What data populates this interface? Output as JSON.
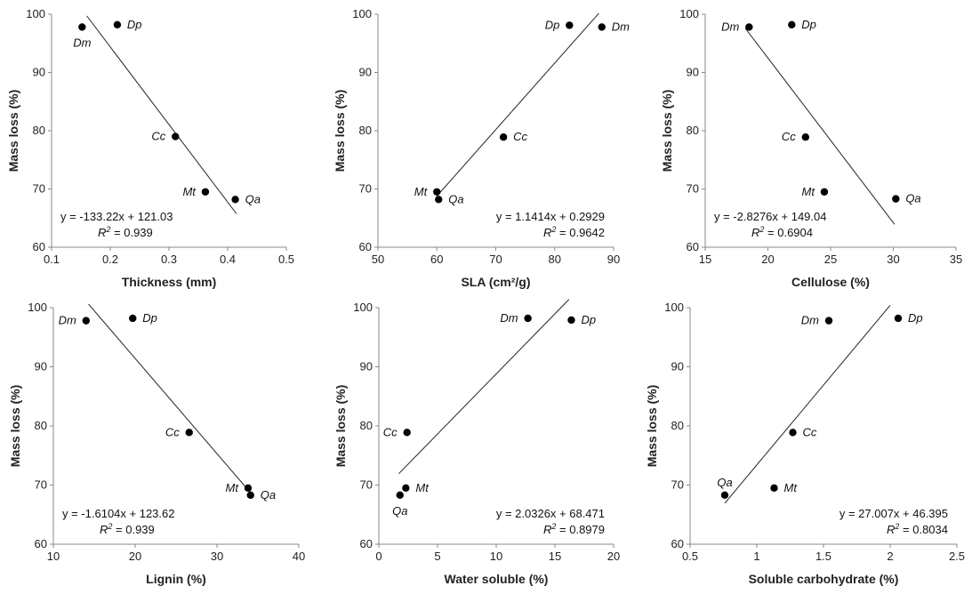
{
  "chart_data": [
    {
      "type": "scatter",
      "xlabel": "Thickness (mm)",
      "ylabel": "Mass loss (%)",
      "xlim": [
        0.1,
        0.5
      ],
      "xticks": [
        0.1,
        0.2,
        0.3,
        0.4,
        0.5
      ],
      "ylim": [
        60,
        100
      ],
      "yticks": [
        60,
        70,
        80,
        90,
        100
      ],
      "points": [
        {
          "label": "Dm",
          "x": 0.152,
          "y": 97.8,
          "label_pos": "below"
        },
        {
          "label": "Dp",
          "x": 0.212,
          "y": 98.2,
          "label_pos": "right"
        },
        {
          "label": "Cc",
          "x": 0.311,
          "y": 79.0,
          "label_pos": "left"
        },
        {
          "label": "Mt",
          "x": 0.362,
          "y": 69.5,
          "label_pos": "left"
        },
        {
          "label": "Qa",
          "x": 0.413,
          "y": 68.2,
          "label_pos": "right"
        }
      ],
      "trendline": {
        "slope": -133.22,
        "intercept": 121.03,
        "x_range": [
          0.16,
          0.415
        ]
      },
      "equation": "y = -133.22x + 121.03",
      "r2_value": "= 0.939"
    },
    {
      "type": "scatter",
      "xlabel": "SLA (cm²/g)",
      "ylabel": "Mass loss (%)",
      "xlim": [
        50,
        90
      ],
      "xticks": [
        50,
        60,
        70,
        80,
        90
      ],
      "ylim": [
        60,
        100
      ],
      "yticks": [
        60,
        70,
        80,
        90,
        100
      ],
      "points": [
        {
          "label": "Dp",
          "x": 82.5,
          "y": 98.1,
          "label_pos": "left"
        },
        {
          "label": "Dm",
          "x": 88.0,
          "y": 97.8,
          "label_pos": "right"
        },
        {
          "label": "Cc",
          "x": 71.3,
          "y": 78.9,
          "label_pos": "right"
        },
        {
          "label": "Mt",
          "x": 60.0,
          "y": 69.5,
          "label_pos": "left"
        },
        {
          "label": "Qa",
          "x": 60.3,
          "y": 68.2,
          "label_pos": "right"
        }
      ],
      "trendline": {
        "slope": 1.1414,
        "intercept": 0.2929,
        "x_range": [
          60.0,
          87.5
        ]
      },
      "equation": "y = 1.1414x + 0.2929",
      "r2_value": "= 0.9642"
    },
    {
      "type": "scatter",
      "xlabel": "Cellulose (%)",
      "ylabel": "Mass loss (%)",
      "xlim": [
        15,
        35
      ],
      "xticks": [
        15,
        20,
        25,
        30,
        35
      ],
      "ylim": [
        60,
        100
      ],
      "yticks": [
        60,
        70,
        80,
        90,
        100
      ],
      "points": [
        {
          "label": "Dm",
          "x": 18.5,
          "y": 97.8,
          "label_pos": "left"
        },
        {
          "label": "Dp",
          "x": 21.9,
          "y": 98.2,
          "label_pos": "right"
        },
        {
          "label": "Cc",
          "x": 23.0,
          "y": 78.9,
          "label_pos": "left"
        },
        {
          "label": "Mt",
          "x": 24.5,
          "y": 69.5,
          "label_pos": "left"
        },
        {
          "label": "Qa",
          "x": 30.2,
          "y": 68.3,
          "label_pos": "right"
        }
      ],
      "trendline": {
        "slope": -2.8276,
        "intercept": 149.04,
        "x_range": [
          18.2,
          30.1
        ]
      },
      "equation": "y = -2.8276x + 149.04",
      "r2_value": "= 0.6904"
    },
    {
      "type": "scatter",
      "xlabel": "Lignin (%)",
      "ylabel": "Mass loss (%)",
      "xlim": [
        10,
        40
      ],
      "xticks": [
        10,
        20,
        30,
        40
      ],
      "ylim": [
        60,
        100
      ],
      "yticks": [
        60,
        70,
        80,
        90,
        100
      ],
      "points": [
        {
          "label": "Dm",
          "x": 14.0,
          "y": 97.8,
          "label_pos": "left"
        },
        {
          "label": "Dp",
          "x": 19.7,
          "y": 98.2,
          "label_pos": "right"
        },
        {
          "label": "Cc",
          "x": 26.6,
          "y": 78.9,
          "label_pos": "left"
        },
        {
          "label": "Mt",
          "x": 33.8,
          "y": 69.5,
          "label_pos": "left"
        },
        {
          "label": "Qa",
          "x": 34.1,
          "y": 68.3,
          "label_pos": "right"
        }
      ],
      "trendline": {
        "slope": -1.6104,
        "intercept": 123.62,
        "x_range": [
          14.3,
          34.3
        ]
      },
      "equation": "y = -1.6104x + 123.62",
      "r2_value": "= 0.939"
    },
    {
      "type": "scatter",
      "xlabel": "Water soluble (%)",
      "ylabel": "Mass loss (%)",
      "xlim": [
        0,
        20
      ],
      "xticks": [
        0,
        5,
        10,
        15,
        20
      ],
      "ylim": [
        60,
        100
      ],
      "yticks": [
        60,
        70,
        80,
        90,
        100
      ],
      "points": [
        {
          "label": "Dm",
          "x": 12.7,
          "y": 98.2,
          "label_pos": "left"
        },
        {
          "label": "Dp",
          "x": 16.4,
          "y": 97.9,
          "label_pos": "right"
        },
        {
          "label": "Cc",
          "x": 2.4,
          "y": 78.9,
          "label_pos": "left"
        },
        {
          "label": "Mt",
          "x": 2.3,
          "y": 69.5,
          "label_pos": "right"
        },
        {
          "label": "Qa",
          "x": 1.8,
          "y": 68.3,
          "label_pos": "below"
        }
      ],
      "trendline": {
        "slope": 2.0326,
        "intercept": 68.471,
        "x_range": [
          1.7,
          16.2
        ]
      },
      "equation": "y = 2.0326x + 68.471",
      "r2_value": "= 0.8979"
    },
    {
      "type": "scatter",
      "xlabel": "Soluble carbohydrate (%)",
      "ylabel": "Mass loss (%)",
      "xlim": [
        0.5,
        2.5
      ],
      "xticks": [
        0.5,
        1.0,
        1.5,
        2.0,
        2.5
      ],
      "ylim": [
        60,
        100
      ],
      "yticks": [
        60,
        70,
        80,
        90,
        100
      ],
      "points": [
        {
          "label": "Dm",
          "x": 1.54,
          "y": 97.8,
          "label_pos": "left"
        },
        {
          "label": "Dp",
          "x": 2.06,
          "y": 98.2,
          "label_pos": "right"
        },
        {
          "label": "Cc",
          "x": 1.27,
          "y": 78.9,
          "label_pos": "right"
        },
        {
          "label": "Mt",
          "x": 1.13,
          "y": 69.5,
          "label_pos": "right"
        },
        {
          "label": "Qa",
          "x": 0.76,
          "y": 68.3,
          "label_pos": "above"
        }
      ],
      "trendline": {
        "slope": 27.007,
        "intercept": 46.395,
        "x_range": [
          0.76,
          2.0
        ]
      },
      "equation": "y = 27.007x + 46.395",
      "r2_value": "= 0.8034"
    }
  ]
}
